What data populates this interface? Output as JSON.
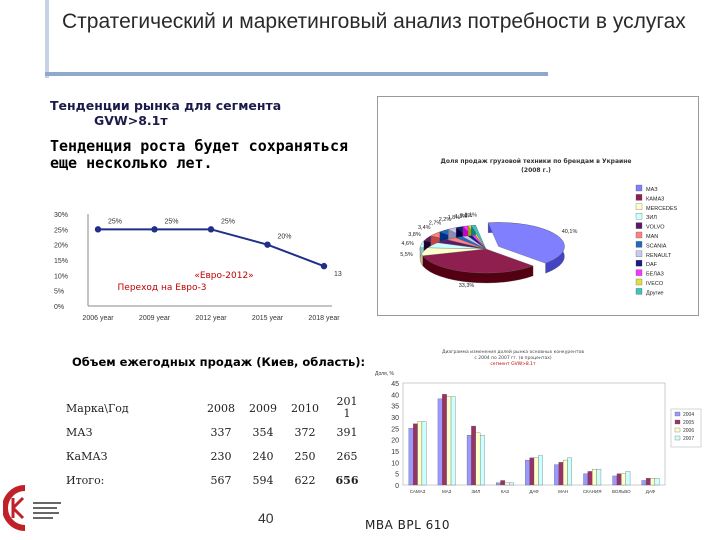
{
  "slide": {
    "title": "Стратегический и маркетинговый анализ потребности в услугах",
    "subtitle_line1": "Тенденции рынка для сегмента",
    "subtitle_line2": "GVW>8.1т",
    "growth_text": "Тенденция роста будет сохраняться еще несколько лет.",
    "sales_label": "Объем ежегодных продаж (Киев, область):",
    "page_number": "40",
    "footer": "MBA BPL 610"
  },
  "sales_table": {
    "headers": [
      "Марка\\Год",
      "2008",
      "2009",
      "2010",
      "201\n1"
    ],
    "rows": [
      {
        "label": "МАЗ",
        "values": [
          "337",
          "354",
          "372",
          "391"
        ]
      },
      {
        "label": "КаМАЗ",
        "values": [
          "230",
          "240",
          "250",
          "265"
        ]
      },
      {
        "label": "Итого:",
        "values": [
          "567",
          "594",
          "622",
          "656"
        ]
      }
    ]
  },
  "chart_data": [
    {
      "type": "line",
      "x": [
        "2006 year",
        "2009 year",
        "2012 year",
        "2015 year",
        "2018 year"
      ],
      "values": [
        25,
        25,
        25,
        20,
        13
      ],
      "data_labels": [
        "25%",
        "25%",
        "25%",
        "20%",
        "13%"
      ],
      "yticks": [
        "30%",
        "25%",
        "20%",
        "15%",
        "10%",
        "5%",
        "0%"
      ],
      "ylim": [
        0,
        30
      ],
      "annotation_line1": "«Евро-2012»",
      "annotation_line2": "Переход на Евро-3",
      "color": "#1f2f8a",
      "grid": false
    },
    {
      "type": "pie",
      "title_line1": "Доля продаж грузовой техники по брендам в Украине",
      "title_line2": "(2008 г.)",
      "labels": [
        "МАЗ",
        "КАМАЗ",
        "MERCEDES",
        "ЗИЛ",
        "VOLVO",
        "MAN",
        "SCANIA",
        "RENAULT",
        "DAF",
        "БЕЛАЗ",
        "IVECO",
        "Другие"
      ],
      "values": [
        40.1,
        33.3,
        5.5,
        4.6,
        3.8,
        3.4,
        2.7,
        2.2,
        1.8,
        1.3,
        0.8,
        1.1
      ],
      "data_labels": [
        "40,1%",
        "33,3%",
        "5,5%",
        "4,6%",
        "3,8%",
        "3,4%",
        "2,7%",
        "2,2%",
        "1,8%",
        "1,3%",
        "0,8%",
        "1,1%"
      ],
      "colors": [
        "#8080ff",
        "#8f1f4f",
        "#ffffcc",
        "#ccffff",
        "#5a1a6a",
        "#ff8080",
        "#1f6bc0",
        "#c8c8f0",
        "#1a1a80",
        "#ff33ff",
        "#e0e040",
        "#40c0c0"
      ],
      "legend_position": "right"
    },
    {
      "type": "bar",
      "title_line1": "Диаграмма изменения долей рынка основных конкурентов",
      "title_line2": "с 2004 по 2007 гг. (в процентах)",
      "title_line3": "сегмент GVW>8.1т",
      "ylabel": "Доля, %",
      "categories": [
        "САМАЗ",
        "МАЗ",
        "ЗИЛ",
        "КАЗ",
        "ДАФ",
        "МАН",
        "СКАНИЯ",
        "ВОЛЬВО",
        "ДАФ"
      ],
      "series": [
        {
          "name": "2004",
          "values": [
            25,
            38,
            22,
            1,
            11,
            9,
            5,
            4,
            2
          ]
        },
        {
          "name": "2005",
          "values": [
            27,
            40,
            26,
            2,
            12,
            10,
            6,
            5,
            3
          ]
        },
        {
          "name": "2006",
          "values": [
            28,
            39,
            23,
            1,
            12,
            11,
            7,
            5,
            3
          ]
        },
        {
          "name": "2007",
          "values": [
            28,
            39,
            22,
            1,
            13,
            12,
            7,
            6,
            3
          ]
        }
      ],
      "colors": [
        "#9999ff",
        "#993366",
        "#ffffcc",
        "#ccffff"
      ],
      "yticks": [
        "45",
        "40",
        "35",
        "30",
        "25",
        "20",
        "15",
        "10",
        "5",
        "0"
      ],
      "ylim": [
        0,
        45
      ],
      "legend_position": "right"
    }
  ]
}
